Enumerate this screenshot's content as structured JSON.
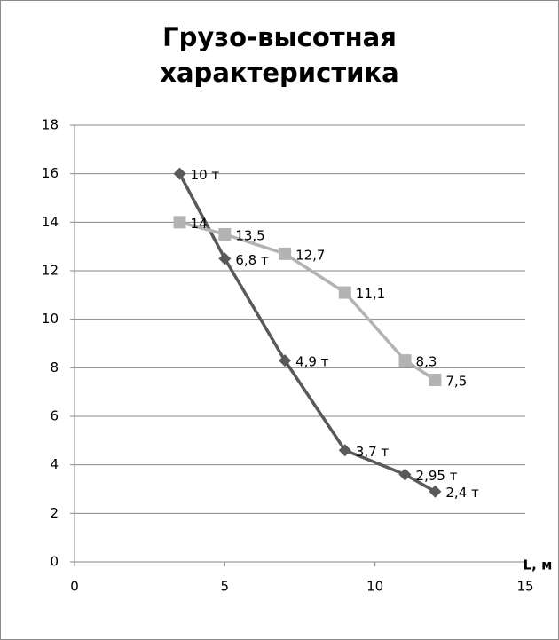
{
  "chart_data": {
    "type": "line",
    "title": "Грузо-высотная характеристика",
    "xlabel": "L, м",
    "xlim": [
      0,
      15
    ],
    "xticks": [
      0,
      5,
      10,
      15
    ],
    "ylim": [
      0,
      18
    ],
    "yticks": [
      0,
      2,
      4,
      6,
      8,
      10,
      12,
      14,
      16,
      18
    ],
    "grid": true,
    "series": [
      {
        "color": "#595959",
        "marker": "diamond",
        "x": [
          3.5,
          5,
          7,
          9,
          11,
          12
        ],
        "values": [
          16,
          12.5,
          8.3,
          4.6,
          3.6,
          2.9
        ],
        "labels": [
          "10 т",
          "6,8 т",
          "4,9 т",
          "3,7 т",
          "2,95 т",
          "2,4 т"
        ]
      },
      {
        "color": "#b3b3b3",
        "marker": "square",
        "x": [
          3.5,
          5,
          7,
          9,
          11,
          12
        ],
        "values": [
          14,
          13.5,
          12.7,
          11.1,
          8.3,
          7.5
        ],
        "value_labels": [
          "14",
          "13,5",
          "12,7",
          "11,1",
          "8,3",
          "7,5"
        ]
      }
    ]
  }
}
